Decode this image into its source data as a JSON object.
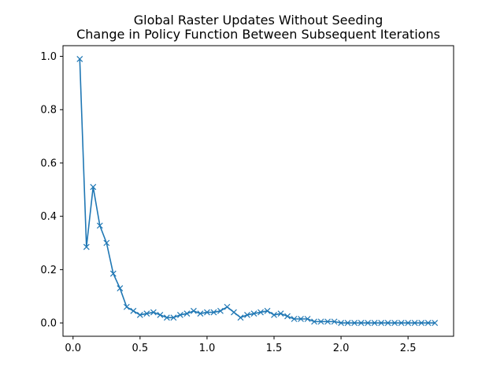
{
  "chart_data": {
    "type": "line",
    "title": [
      "Global Raster Updates Without Seeding",
      "Change in Policy Function Between Subsequent Iterations"
    ],
    "xlabel": "",
    "ylabel": "",
    "xlim": [
      -0.075,
      2.84
    ],
    "ylim": [
      -0.05,
      1.04
    ],
    "x_ticks": [
      0.0,
      0.5,
      1.0,
      1.5,
      2.0,
      2.5
    ],
    "x_tick_labels": [
      "0.0",
      "0.5",
      "1.0",
      "1.5",
      "2.0",
      "2.5"
    ],
    "y_ticks": [
      0.0,
      0.2,
      0.4,
      0.6,
      0.8,
      1.0
    ],
    "y_tick_labels": [
      "0.0",
      "0.2",
      "0.4",
      "0.6",
      "0.8",
      "1.0"
    ],
    "grid": false,
    "marker": "x",
    "series_color": "#1f77b4",
    "series": [
      {
        "x": [
          0.05,
          0.1,
          0.15,
          0.2,
          0.25,
          0.3,
          0.35,
          0.4,
          0.45,
          0.5,
          0.55,
          0.6,
          0.65,
          0.7,
          0.75,
          0.8,
          0.85,
          0.9,
          0.95,
          1.0,
          1.05,
          1.1,
          1.15,
          1.2,
          1.25,
          1.3,
          1.35,
          1.4,
          1.45,
          1.5,
          1.55,
          1.6,
          1.65,
          1.7,
          1.75,
          1.8,
          1.85,
          1.9,
          1.95,
          2.0,
          2.05,
          2.1,
          2.15,
          2.2,
          2.25,
          2.3,
          2.35,
          2.4,
          2.45,
          2.5,
          2.55,
          2.6,
          2.65,
          2.7
        ],
        "values": [
          0.99,
          0.285,
          0.51,
          0.365,
          0.3,
          0.185,
          0.13,
          0.06,
          0.045,
          0.03,
          0.035,
          0.04,
          0.03,
          0.02,
          0.02,
          0.03,
          0.035,
          0.045,
          0.035,
          0.04,
          0.04,
          0.045,
          0.06,
          0.04,
          0.02,
          0.03,
          0.035,
          0.04,
          0.045,
          0.03,
          0.035,
          0.025,
          0.015,
          0.015,
          0.015,
          0.005,
          0.005,
          0.005,
          0.005,
          0.0,
          0.0,
          0.0,
          0.0,
          0.0,
          0.0,
          0.0,
          0.0,
          0.0,
          0.0,
          0.0,
          0.0,
          0.0,
          0.0,
          0.0
        ]
      }
    ]
  }
}
